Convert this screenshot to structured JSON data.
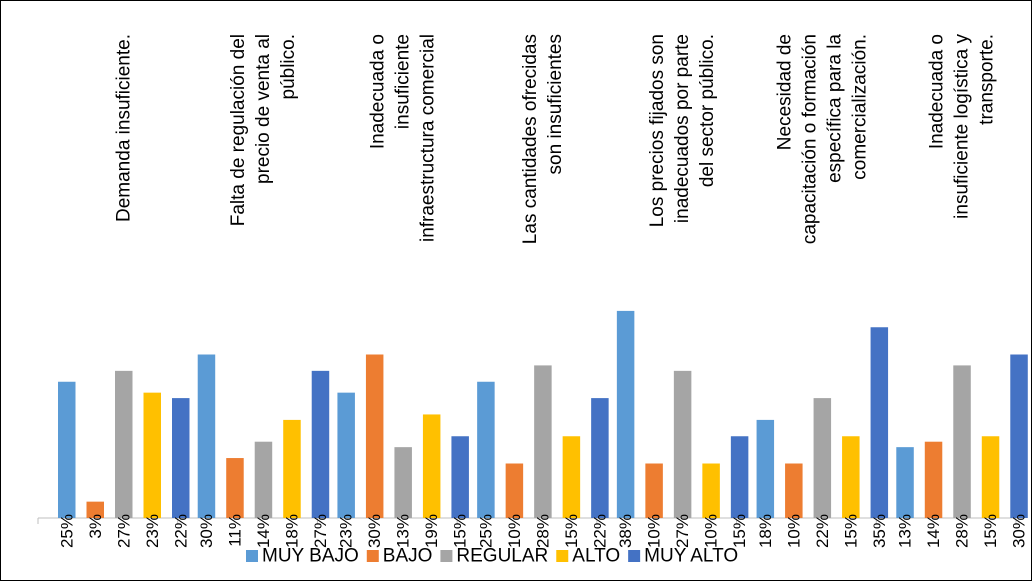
{
  "chart_data": {
    "type": "bar",
    "categories": [
      "Demanda insuficiente.",
      "Falta de regulación del precio de venta al público.",
      "Inadecuada o insuficiente infraestructura comercial",
      "Las cantidades ofrecidas son insuficientes",
      "Los precios fijados son inadecuados por parte del sector público.",
      "Necesidad de capacitación o formación específica para la comercialización.",
      "Inadecuada o insuficiente logística y transporte."
    ],
    "category_lines": [
      [
        "Demanda insuficiente."
      ],
      [
        "Falta de regulación del",
        "precio de venta al",
        "público."
      ],
      [
        "Inadecuada o",
        "insuficiente",
        "infraestructura comercial"
      ],
      [
        "Las cantidades ofrecidas",
        "son insuficientes"
      ],
      [
        "Los precios fijados son",
        "inadecuados por parte",
        "del sector público."
      ],
      [
        "Necesidad de",
        "capacitación o formación",
        "específica para la",
        "comercialización."
      ],
      [
        "Inadecuada o",
        "insuficiente logística y",
        "transporte."
      ]
    ],
    "series": [
      {
        "name": "MUY BAJO",
        "color": "#5B9BD5",
        "values": [
          25,
          30,
          23,
          25,
          38,
          18,
          13
        ]
      },
      {
        "name": "BAJO",
        "color": "#ED7D31",
        "values": [
          3,
          11,
          30,
          10,
          10,
          10,
          14
        ]
      },
      {
        "name": "REGULAR",
        "color": "#A5A5A5",
        "values": [
          27,
          14,
          13,
          28,
          27,
          22,
          28
        ]
      },
      {
        "name": "ALTO",
        "color": "#FFC000",
        "values": [
          23,
          18,
          19,
          15,
          10,
          15,
          15
        ]
      },
      {
        "name": "MUY ALTO",
        "color": "#4472C4",
        "values": [
          22,
          27,
          15,
          22,
          15,
          35,
          30
        ]
      }
    ],
    "data_labels": [
      [
        "25%",
        "30%",
        "23%",
        "25%",
        "38%",
        "18%",
        "13%"
      ],
      [
        "3%",
        "11%",
        "30%",
        "10%",
        "10%",
        "10%",
        "14%"
      ],
      [
        "27%",
        "14%",
        "13%",
        "28%",
        "27%",
        "22%",
        "28%"
      ],
      [
        "23%",
        "18%",
        "19%",
        "15%",
        "10%",
        "15%",
        "15%"
      ],
      [
        "22%",
        "27%",
        "15%",
        "22%",
        "15%",
        "35%",
        "30%"
      ]
    ],
    "ylim": [
      0,
      40
    ],
    "grid": false,
    "legend": "bottom",
    "title": "",
    "xlabel": "",
    "ylabel": ""
  }
}
